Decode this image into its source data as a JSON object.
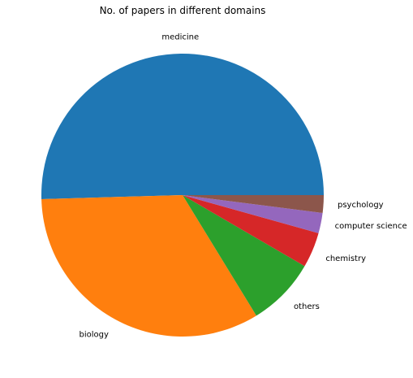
{
  "chart_data": {
    "type": "pie",
    "title": "No. of papers in different domains",
    "slices": [
      {
        "label": "medicine",
        "value": 50.0,
        "color": "#1f77b4"
      },
      {
        "label": "biology",
        "value": 33.0,
        "color": "#ff7f0e"
      },
      {
        "label": "others",
        "value": 7.8,
        "color": "#2ca02c"
      },
      {
        "label": "chemistry",
        "value": 4.0,
        "color": "#d62728"
      },
      {
        "label": "computer science",
        "value": 2.3,
        "color": "#9467bd"
      },
      {
        "label": "psychology",
        "value": 2.0,
        "color": "#8c564b"
      }
    ],
    "start_angle_deg": 0,
    "direction": "counterclockwise",
    "legend": "none"
  }
}
